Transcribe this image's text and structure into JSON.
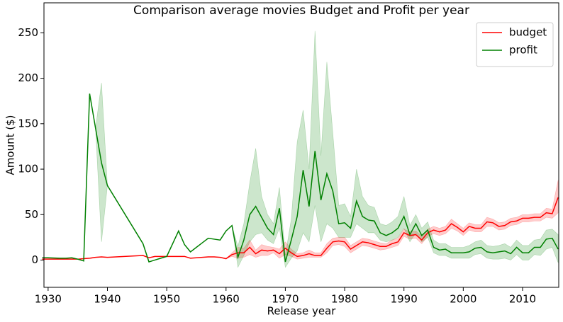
{
  "chart_data": {
    "type": "line",
    "title": "Comparison average movies Budget and Profit per year",
    "x_label": "Release year",
    "y_label": "Amount ($)",
    "x": [
      1929,
      1930,
      1932,
      1933,
      1934,
      1935,
      1936,
      1937,
      1938,
      1939,
      1940,
      1946,
      1947,
      1948,
      1949,
      1950,
      1952,
      1953,
      1954,
      1955,
      1956,
      1957,
      1958,
      1959,
      1960,
      1961,
      1962,
      1963,
      1964,
      1965,
      1966,
      1967,
      1968,
      1969,
      1970,
      1971,
      1972,
      1973,
      1974,
      1975,
      1976,
      1977,
      1978,
      1979,
      1980,
      1981,
      1982,
      1983,
      1984,
      1985,
      1986,
      1987,
      1988,
      1989,
      1990,
      1991,
      1992,
      1993,
      1994,
      1995,
      1996,
      1997,
      1998,
      1999,
      2000,
      2001,
      2002,
      2003,
      2004,
      2005,
      2006,
      2007,
      2008,
      2009,
      2010,
      2011,
      2012,
      2013,
      2014,
      2015,
      2016
    ],
    "series": [
      {
        "name": "budget",
        "color": "#ff0000",
        "values": [
          1,
          1,
          1,
          1,
          1,
          1,
          1.5,
          2,
          3,
          3.5,
          3,
          5,
          2.5,
          4,
          4,
          4,
          4,
          4,
          2,
          2.5,
          3,
          3.5,
          3.5,
          3,
          1.5,
          6,
          8,
          8,
          14,
          7,
          11,
          10,
          11,
          7,
          13,
          8,
          4,
          5,
          7,
          5,
          5,
          13,
          20,
          21,
          20,
          12,
          16,
          20,
          19,
          17,
          15,
          15,
          18,
          20,
          30,
          27,
          28,
          22,
          30,
          33,
          31,
          33,
          40,
          36,
          31,
          37,
          35,
          35,
          42,
          41,
          37,
          38,
          42,
          43,
          46,
          46,
          47,
          47,
          52,
          51,
          69
        ],
        "lower": [
          1,
          1,
          1,
          1,
          1,
          1,
          1.5,
          2,
          3,
          3.5,
          3,
          5,
          2.5,
          4,
          4,
          4,
          4,
          4,
          2,
          2.5,
          3,
          3.5,
          3.5,
          3,
          1.5,
          4,
          2,
          3,
          6,
          3,
          5,
          5,
          8,
          2,
          6,
          4,
          1,
          2,
          3,
          3,
          3,
          8,
          16,
          17,
          15,
          8,
          12,
          16,
          15,
          13,
          11,
          12,
          14,
          16,
          26,
          23,
          24,
          18,
          26,
          29,
          27,
          29,
          35,
          32,
          27,
          33,
          31,
          31,
          37,
          37,
          33,
          34,
          38,
          39,
          42,
          42,
          43,
          43,
          47,
          46,
          52
        ],
        "upper": [
          1,
          1,
          1,
          1,
          1,
          1,
          1.5,
          2,
          3,
          3.5,
          3,
          5,
          2.5,
          4,
          4,
          4,
          4,
          4,
          2,
          2.5,
          3,
          3.5,
          3.5,
          3,
          1.5,
          8,
          14,
          13,
          22,
          11,
          17,
          15,
          14,
          12,
          20,
          12,
          7,
          8,
          11,
          8,
          8,
          18,
          24,
          25,
          25,
          16,
          20,
          24,
          23,
          21,
          19,
          18,
          22,
          24,
          34,
          31,
          32,
          26,
          34,
          37,
          35,
          37,
          45,
          40,
          35,
          41,
          39,
          39,
          47,
          45,
          41,
          42,
          46,
          47,
          50,
          50,
          51,
          51,
          57,
          56,
          88
        ]
      },
      {
        "name": "profit",
        "color": "#008000",
        "values": [
          2.5,
          2.5,
          2,
          2,
          2.5,
          1,
          -1,
          183,
          145,
          107,
          82,
          18,
          -2,
          0,
          2,
          4,
          32,
          17,
          9,
          14,
          19,
          24,
          23,
          22,
          32,
          38,
          3,
          22,
          50,
          59,
          47,
          35,
          28,
          57,
          -2,
          22,
          48,
          99,
          59,
          120,
          66,
          95,
          76,
          40,
          41,
          35,
          65,
          48,
          44,
          43,
          30,
          27,
          30,
          35,
          48,
          28,
          40,
          27,
          33,
          14,
          11,
          12,
          8,
          8,
          8,
          9,
          13,
          14,
          9,
          8,
          9,
          10,
          7,
          14,
          8,
          8,
          14,
          14,
          23,
          24,
          12
        ],
        "lower": [
          2.5,
          2.5,
          2,
          2,
          2.5,
          1,
          -1,
          183,
          145,
          20,
          82,
          18,
          -2,
          0,
          2,
          4,
          32,
          17,
          9,
          14,
          19,
          24,
          23,
          22,
          32,
          38,
          -8,
          5,
          20,
          28,
          30,
          22,
          18,
          35,
          -8,
          2,
          10,
          30,
          20,
          60,
          20,
          40,
          35,
          25,
          25,
          25,
          40,
          35,
          30,
          30,
          22,
          20,
          22,
          25,
          35,
          20,
          30,
          20,
          25,
          8,
          5,
          5,
          2,
          2,
          2,
          2,
          6,
          7,
          2,
          1,
          1,
          2,
          0,
          6,
          0,
          0,
          6,
          5,
          12,
          14,
          -3
        ],
        "upper": [
          2.5,
          2.5,
          2,
          2,
          2.5,
          1,
          -1,
          183,
          145,
          195,
          82,
          18,
          -2,
          0,
          2,
          4,
          32,
          17,
          9,
          14,
          19,
          24,
          23,
          22,
          32,
          38,
          15,
          40,
          85,
          123,
          70,
          50,
          40,
          80,
          5,
          45,
          130,
          165,
          100,
          252,
          115,
          218,
          140,
          60,
          62,
          48,
          100,
          70,
          60,
          58,
          40,
          38,
          42,
          48,
          70,
          38,
          50,
          35,
          42,
          22,
          18,
          18,
          14,
          14,
          14,
          16,
          20,
          22,
          16,
          15,
          16,
          18,
          14,
          22,
          16,
          16,
          22,
          23,
          33,
          34,
          28
        ]
      }
    ],
    "xlim": [
      1929.3,
      2016.1
    ],
    "ylim": [
      -30,
      283
    ],
    "xticks": [
      1930,
      1940,
      1950,
      1960,
      1970,
      1980,
      1990,
      2000,
      2010
    ],
    "yticks": [
      0,
      50,
      100,
      150,
      200,
      250
    ],
    "legend": "upper right"
  }
}
